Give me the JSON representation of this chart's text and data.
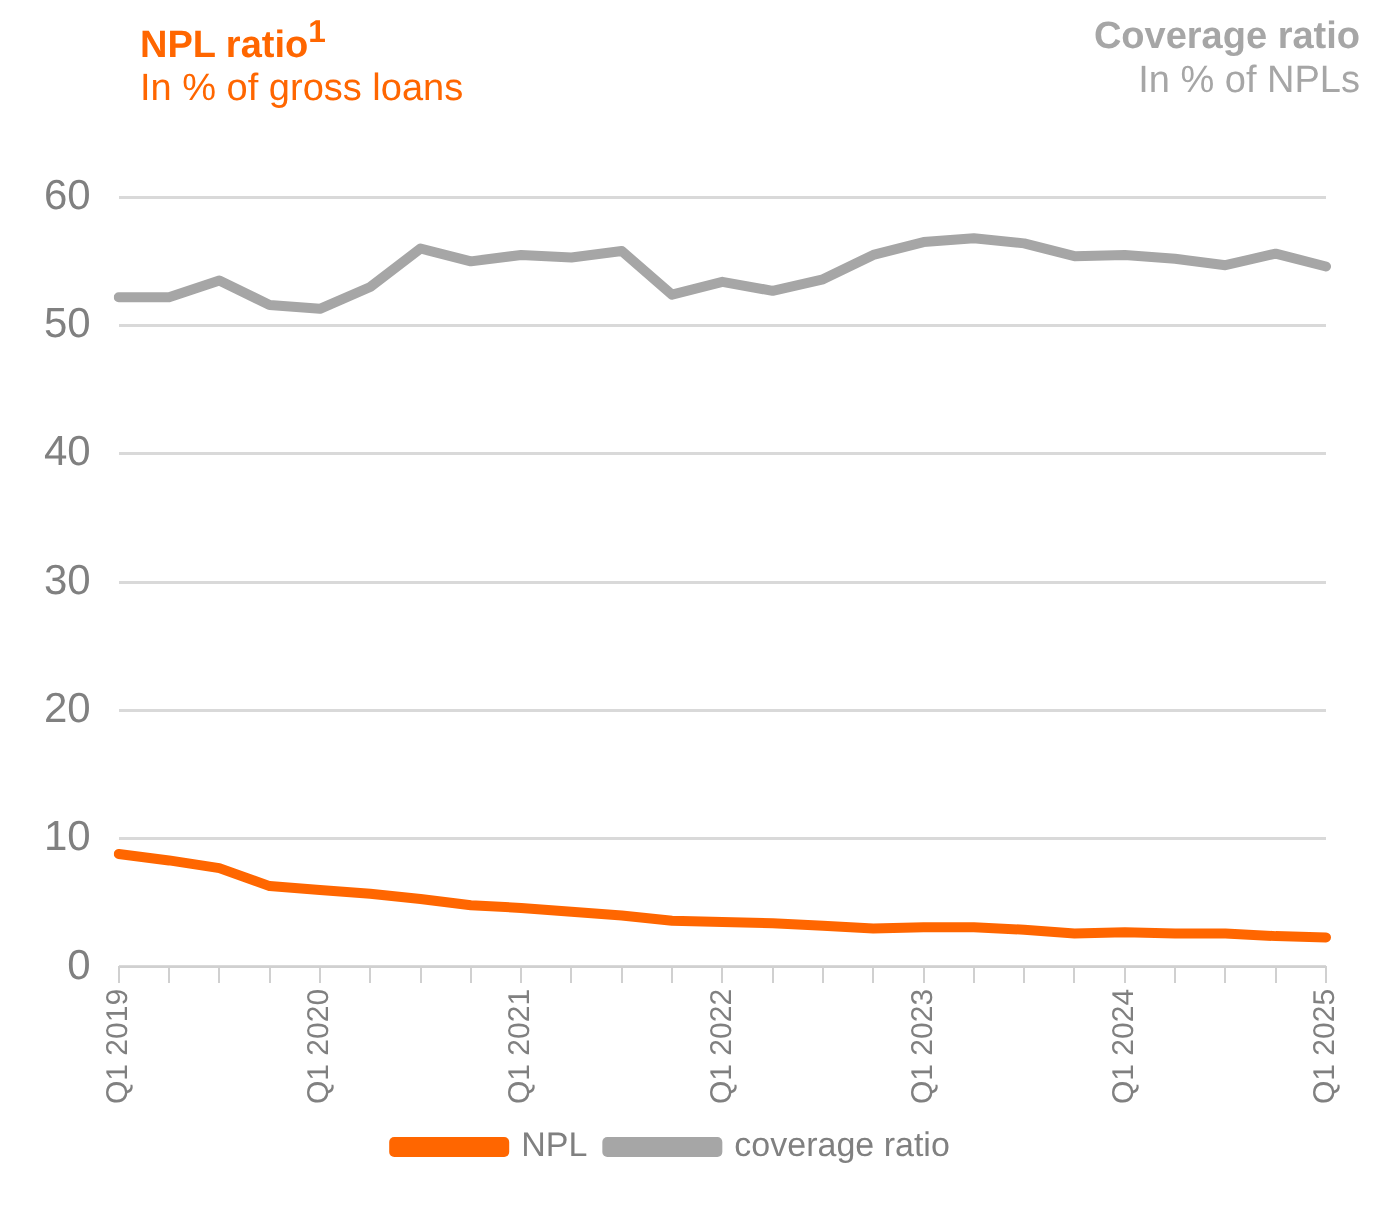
{
  "chart_data": {
    "type": "line",
    "title": "NPL ratio$^{1}$",
    "subtitle": "In % of gross loans",
    "annotations": [
      "Coverage ratio",
      "In % of NPLs"
    ],
    "categories": [
      "Q1 2019",
      null,
      null,
      null,
      "Q1 2020",
      null,
      null,
      null,
      "Q1 2021",
      null,
      null,
      null,
      "Q1 2022",
      null,
      null,
      null,
      "Q1 2023",
      null,
      null,
      null,
      "Q1 2024",
      null,
      null,
      null,
      "Q1 2025"
    ],
    "series": [
      {
        "name": "NPL",
        "color": "#ff6600",
        "values": [
          8.8,
          8.3,
          7.7,
          6.3,
          6.0,
          5.7,
          5.3,
          4.8,
          4.6,
          4.3,
          4.0,
          3.6,
          3.5,
          3.4,
          3.2,
          3.0,
          3.1,
          3.1,
          2.9,
          2.6,
          2.7,
          2.6,
          2.6,
          2.4,
          2.3
        ]
      },
      {
        "name": "coverage ratio",
        "color": "#a6a6a6",
        "values": [
          52.2,
          52.2,
          53.5,
          51.6,
          51.3,
          53.0,
          56.0,
          55.0,
          55.5,
          55.3,
          55.8,
          52.4,
          53.4,
          52.7,
          53.6,
          55.5,
          56.5,
          56.8,
          56.4,
          55.4,
          55.5,
          55.2,
          54.7,
          55.6,
          54.6
        ]
      }
    ],
    "ylim": [
      0,
      60
    ],
    "yticks": [
      0,
      10,
      20,
      30,
      40,
      50,
      60
    ],
    "grid": "y",
    "legend": "bottom",
    "marker": "none",
    "line_style": "solid"
  }
}
